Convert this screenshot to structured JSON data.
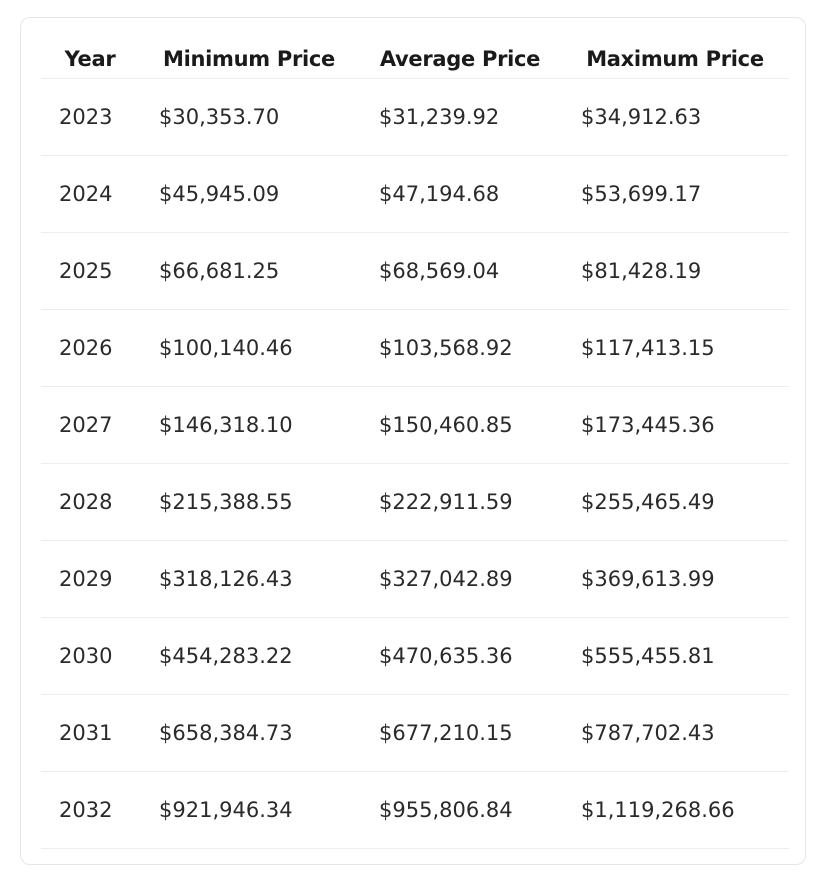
{
  "table": {
    "headers": {
      "year": "Year",
      "min": "Minimum Price",
      "avg": "Average Price",
      "max": "Maximum Price"
    },
    "rows": [
      {
        "year": "2023",
        "min": "$30,353.70",
        "avg": "$31,239.92",
        "max": "$34,912.63"
      },
      {
        "year": "2024",
        "min": "$45,945.09",
        "avg": "$47,194.68",
        "max": "$53,699.17"
      },
      {
        "year": "2025",
        "min": "$66,681.25",
        "avg": "$68,569.04",
        "max": "$81,428.19"
      },
      {
        "year": "2026",
        "min": "$100,140.46",
        "avg": "$103,568.92",
        "max": "$117,413.15"
      },
      {
        "year": "2027",
        "min": "$146,318.10",
        "avg": "$150,460.85",
        "max": "$173,445.36"
      },
      {
        "year": "2028",
        "min": "$215,388.55",
        "avg": "$222,911.59",
        "max": "$255,465.49"
      },
      {
        "year": "2029",
        "min": "$318,126.43",
        "avg": "$327,042.89",
        "max": "$369,613.99"
      },
      {
        "year": "2030",
        "min": "$454,283.22",
        "avg": "$470,635.36",
        "max": "$555,455.81"
      },
      {
        "year": "2031",
        "min": "$658,384.73",
        "avg": "$677,210.15",
        "max": "$787,702.43"
      },
      {
        "year": "2032",
        "min": "$921,946.34",
        "avg": "$955,806.84",
        "max": "$1,119,268.66"
      }
    ]
  }
}
